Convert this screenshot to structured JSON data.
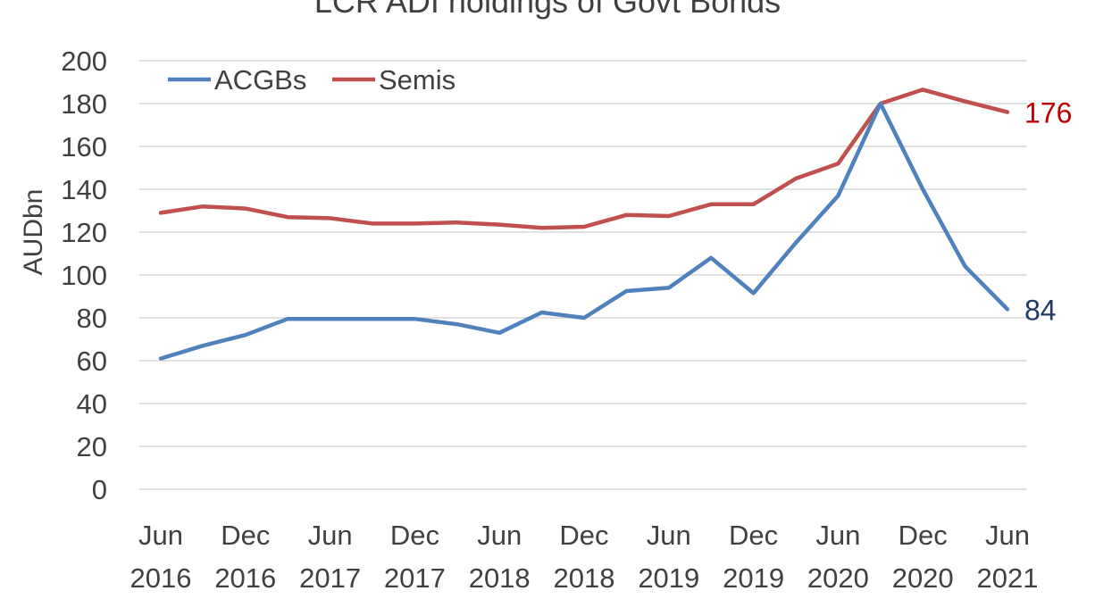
{
  "chart_data": {
    "type": "line",
    "title": "LCR ADI holdings of Govt Bonds",
    "ylabel": "AUDbn",
    "xlabel": "",
    "ylim": [
      0,
      200
    ],
    "yticks": [
      0,
      20,
      40,
      60,
      80,
      100,
      120,
      140,
      160,
      180,
      200
    ],
    "grid": true,
    "legend_position": "top-left",
    "x_tick_labels": [
      {
        "line1": "Jun",
        "line2": "2016"
      },
      {
        "line1": "Dec",
        "line2": "2016"
      },
      {
        "line1": "Jun",
        "line2": "2017"
      },
      {
        "line1": "Dec",
        "line2": "2017"
      },
      {
        "line1": "Jun",
        "line2": "2018"
      },
      {
        "line1": "Dec",
        "line2": "2018"
      },
      {
        "line1": "Jun",
        "line2": "2019"
      },
      {
        "line1": "Dec",
        "line2": "2019"
      },
      {
        "line1": "Jun",
        "line2": "2020"
      },
      {
        "line1": "Dec",
        "line2": "2020"
      },
      {
        "line1": "Jun",
        "line2": "2021"
      }
    ],
    "x": [
      "Jun 2016",
      "Sep 2016",
      "Dec 2016",
      "Mar 2017",
      "Jun 2017",
      "Sep 2017",
      "Dec 2017",
      "Mar 2018",
      "Jun 2018",
      "Sep 2018",
      "Dec 2018",
      "Mar 2019",
      "Jun 2019",
      "Sep 2019",
      "Dec 2019",
      "Mar 2020",
      "Jun 2020",
      "Sep 2020",
      "Dec 2020",
      "Mar 2021",
      "Jun 2021"
    ],
    "series": [
      {
        "name": "ACGBs",
        "color": "#4f81bd",
        "values": [
          61,
          67,
          72,
          79.5,
          79.5,
          79.5,
          79.5,
          77,
          73,
          82.5,
          80,
          92.5,
          94,
          108,
          91.5,
          115,
          137,
          180,
          140,
          104,
          84
        ],
        "end_label": "84",
        "end_label_color": "#1f3864"
      },
      {
        "name": "Semis",
        "color": "#c0504d",
        "values": [
          129,
          132,
          131,
          127,
          126.5,
          124,
          124,
          124.5,
          123.5,
          122,
          122.5,
          128,
          127.5,
          133,
          133,
          145,
          152,
          180,
          186.5,
          181,
          176
        ],
        "end_label": "176",
        "end_label_color": "#c00000"
      }
    ]
  }
}
